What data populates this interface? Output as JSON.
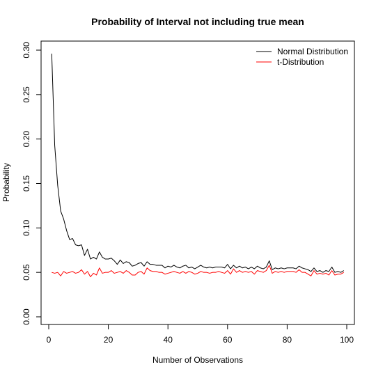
{
  "chart_data": {
    "type": "line",
    "title": "Probability of Interval not including true mean",
    "xlabel": "Number of Observations",
    "ylabel": "Probability",
    "xlim": [
      0,
      100
    ],
    "ylim": [
      0,
      0.3
    ],
    "x_ticks": [
      0,
      20,
      40,
      60,
      80,
      100
    ],
    "x_tick_labels": [
      "0",
      "20",
      "40",
      "60",
      "80",
      "100"
    ],
    "y_ticks": [
      0,
      0.05,
      0.1,
      0.15,
      0.2,
      0.25,
      0.3
    ],
    "y_tick_labels": [
      "0.00",
      "0.05",
      "0.10",
      "0.15",
      "0.20",
      "0.25",
      "0.30"
    ],
    "legend_position": "top-right",
    "x": [
      1,
      2,
      3,
      4,
      5,
      6,
      7,
      8,
      9,
      10,
      11,
      12,
      13,
      14,
      15,
      16,
      17,
      18,
      19,
      20,
      21,
      22,
      23,
      24,
      25,
      26,
      27,
      28,
      29,
      30,
      31,
      32,
      33,
      34,
      35,
      36,
      37,
      38,
      39,
      40,
      41,
      42,
      43,
      44,
      45,
      46,
      47,
      48,
      49,
      50,
      51,
      52,
      53,
      54,
      55,
      56,
      57,
      58,
      59,
      60,
      61,
      62,
      63,
      64,
      65,
      66,
      67,
      68,
      69,
      70,
      71,
      72,
      73,
      74,
      75,
      76,
      77,
      78,
      79,
      80,
      81,
      82,
      83,
      84,
      85,
      86,
      87,
      88,
      89,
      90,
      91,
      92,
      93,
      94,
      95,
      96,
      97,
      98,
      99
    ],
    "series": [
      {
        "name": "Normal Distribution",
        "color": "#000000",
        "values": [
          0.296,
          0.193,
          0.148,
          0.119,
          0.11,
          0.097,
          0.087,
          0.088,
          0.081,
          0.08,
          0.081,
          0.069,
          0.076,
          0.065,
          0.067,
          0.065,
          0.073,
          0.067,
          0.065,
          0.065,
          0.066,
          0.063,
          0.059,
          0.064,
          0.06,
          0.062,
          0.061,
          0.057,
          0.058,
          0.06,
          0.061,
          0.057,
          0.062,
          0.059,
          0.059,
          0.058,
          0.058,
          0.058,
          0.055,
          0.057,
          0.056,
          0.058,
          0.056,
          0.055,
          0.057,
          0.058,
          0.055,
          0.056,
          0.054,
          0.056,
          0.058,
          0.056,
          0.055,
          0.056,
          0.055,
          0.056,
          0.056,
          0.056,
          0.055,
          0.059,
          0.054,
          0.058,
          0.055,
          0.057,
          0.055,
          0.056,
          0.054,
          0.056,
          0.054,
          0.057,
          0.055,
          0.054,
          0.056,
          0.063,
          0.053,
          0.055,
          0.054,
          0.055,
          0.054,
          0.055,
          0.055,
          0.055,
          0.054,
          0.057,
          0.055,
          0.054,
          0.053,
          0.051,
          0.055,
          0.051,
          0.052,
          0.05,
          0.052,
          0.051,
          0.056,
          0.05,
          0.051,
          0.05,
          0.052
        ]
      },
      {
        "name": "t-Distribution",
        "color": "#ff0000",
        "values": [
          0.05,
          0.049,
          0.05,
          0.046,
          0.051,
          0.049,
          0.05,
          0.051,
          0.049,
          0.05,
          0.053,
          0.048,
          0.051,
          0.045,
          0.049,
          0.047,
          0.055,
          0.049,
          0.05,
          0.05,
          0.052,
          0.049,
          0.05,
          0.051,
          0.049,
          0.052,
          0.05,
          0.047,
          0.047,
          0.05,
          0.051,
          0.048,
          0.055,
          0.052,
          0.051,
          0.051,
          0.05,
          0.05,
          0.048,
          0.049,
          0.05,
          0.051,
          0.05,
          0.049,
          0.051,
          0.049,
          0.051,
          0.05,
          0.048,
          0.049,
          0.051,
          0.05,
          0.05,
          0.049,
          0.05,
          0.05,
          0.051,
          0.05,
          0.049,
          0.052,
          0.048,
          0.054,
          0.05,
          0.052,
          0.05,
          0.051,
          0.05,
          0.051,
          0.048,
          0.052,
          0.051,
          0.05,
          0.052,
          0.058,
          0.049,
          0.051,
          0.05,
          0.051,
          0.05,
          0.051,
          0.051,
          0.051,
          0.05,
          0.053,
          0.05,
          0.05,
          0.048,
          0.046,
          0.052,
          0.048,
          0.049,
          0.048,
          0.049,
          0.047,
          0.052,
          0.047,
          0.048,
          0.048,
          0.05
        ]
      }
    ]
  }
}
